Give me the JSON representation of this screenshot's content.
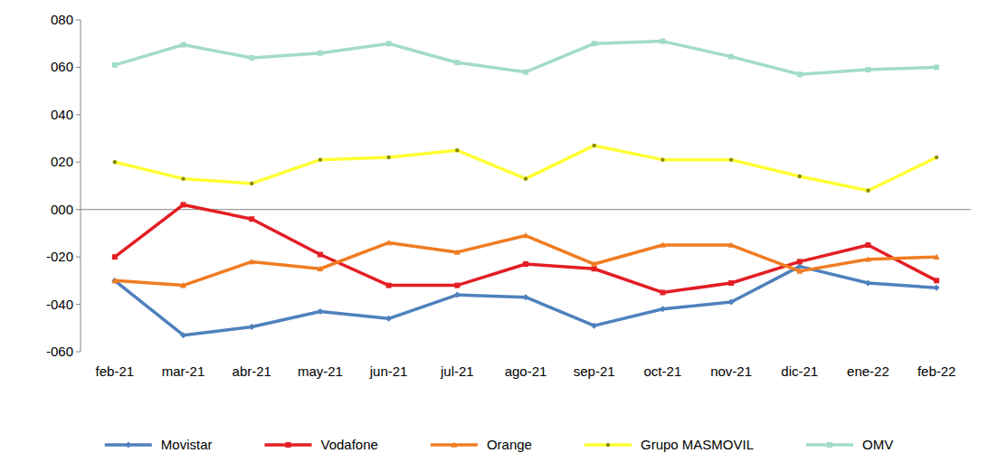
{
  "chart_data": {
    "type": "line",
    "categories": [
      "feb-21",
      "mar-21",
      "abr-21",
      "may-21",
      "jun-21",
      "jul-21",
      "ago-21",
      "sep-21",
      "oct-21",
      "nov-21",
      "dic-21",
      "ene-22",
      "feb-22"
    ],
    "ylim": [
      -60,
      80
    ],
    "yticks": [
      {
        "value": -60,
        "label": "-060"
      },
      {
        "value": -40,
        "label": "-040"
      },
      {
        "value": -20,
        "label": "-020"
      },
      {
        "value": 0,
        "label": "000"
      },
      {
        "value": 20,
        "label": "020"
      },
      {
        "value": 40,
        "label": "040"
      },
      {
        "value": 60,
        "label": "060"
      },
      {
        "value": 80,
        "label": "080"
      }
    ],
    "grid": false,
    "legend": "bottom",
    "series": [
      {
        "name": "Movistar",
        "color": "#4f81bd",
        "marker": "diamond",
        "values": [
          -30,
          -53,
          -49.5,
          -43,
          -46,
          -36,
          -37,
          -49,
          -42,
          -39,
          -24,
          -31,
          -33
        ]
      },
      {
        "name": "Vodafone",
        "color": "#e31e24",
        "marker": "square",
        "values": [
          -20,
          2,
          -4,
          -19,
          -32,
          -32,
          -23,
          -25,
          -35,
          -31,
          -22,
          -15,
          -30
        ]
      },
      {
        "name": "Orange",
        "color": "#f07c22",
        "marker": "triangle",
        "values": [
          -30,
          -32,
          -22,
          -25,
          -14,
          -18,
          -11,
          -23,
          -15,
          -15,
          -26,
          -21,
          -20
        ]
      },
      {
        "name": "Grupo MASMOVIL",
        "color": "#ffff33",
        "marker": "circle",
        "values": [
          20,
          13,
          11,
          21,
          22,
          25,
          13,
          27,
          21,
          21,
          14,
          8,
          22
        ]
      },
      {
        "name": "OMV",
        "color": "#a2dcc8",
        "marker": "square",
        "values": [
          61,
          69.5,
          64,
          66,
          70,
          62,
          58,
          70,
          71,
          64.5,
          57,
          59,
          60
        ]
      }
    ]
  }
}
